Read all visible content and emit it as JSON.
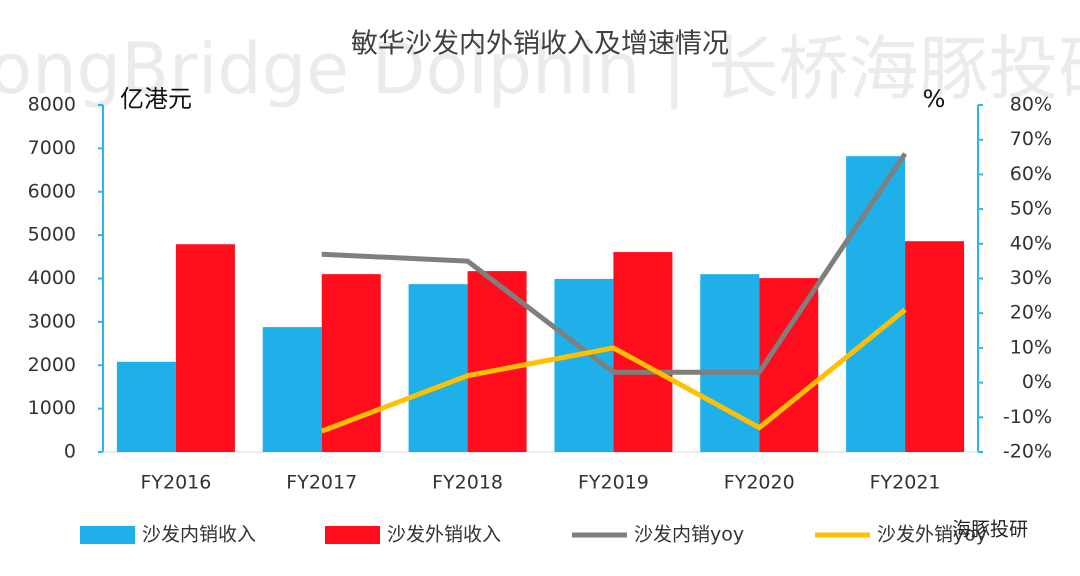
{
  "chart_data": {
    "type": "bar-line",
    "title": "敏华沙发内外销收入及增速情况",
    "y_label": "亿港元",
    "y2_label": "%",
    "watermark": "LongBridge Dolphin | 长桥海豚投研",
    "badge": "海豚投研",
    "categories": [
      "FY2016",
      "FY2017",
      "FY2018",
      "FY2019",
      "FY2020",
      "FY2021"
    ],
    "ylim": [
      0,
      8000
    ],
    "yticks": [
      0,
      1000,
      2000,
      3000,
      4000,
      5000,
      6000,
      7000,
      8000
    ],
    "y2lim": [
      -20,
      80
    ],
    "y2ticks": [
      {
        "value": -20,
        "label": "-20%"
      },
      {
        "value": -10,
        "label": "-10%"
      },
      {
        "value": 0,
        "label": "0%"
      },
      {
        "value": 10,
        "label": "10%"
      },
      {
        "value": 20,
        "label": "20%"
      },
      {
        "value": 30,
        "label": "30%"
      },
      {
        "value": 40,
        "label": "40%"
      },
      {
        "value": 50,
        "label": "50%"
      },
      {
        "value": 60,
        "label": "60%"
      },
      {
        "value": 70,
        "label": "70%"
      },
      {
        "value": 80,
        "label": "80%"
      }
    ],
    "series": [
      {
        "name": "沙发内销收入",
        "type": "bar",
        "color": "#1fb0ea",
        "values": [
          2080,
          2880,
          3870,
          3990,
          4100,
          6820
        ]
      },
      {
        "name": "沙发外销收入",
        "type": "bar",
        "color": "#ff0d1d",
        "values": [
          4790,
          4100,
          4170,
          4610,
          4010,
          4860
        ]
      },
      {
        "name": "沙发内销yoy",
        "type": "line",
        "axis": "y2",
        "color": "#7f7f7f",
        "values": [
          null,
          37,
          35,
          3,
          3,
          66
        ]
      },
      {
        "name": "沙发外销yoy",
        "type": "line",
        "axis": "y2",
        "color": "#ffc000",
        "values": [
          null,
          -14,
          2,
          10,
          -13,
          21
        ]
      }
    ]
  }
}
